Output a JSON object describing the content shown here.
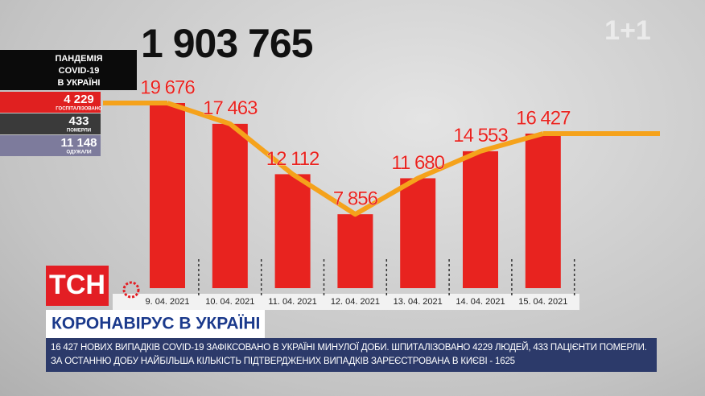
{
  "chart_data": {
    "type": "bar",
    "categories": [
      "9. 04. 2021",
      "10. 04. 2021",
      "11. 04. 2021",
      "12. 04. 2021",
      "13. 04. 2021",
      "14. 04. 2021",
      "15. 04. 2021"
    ],
    "values": [
      19676,
      17463,
      12112,
      7856,
      11680,
      14553,
      16427
    ],
    "value_labels": [
      "19 676",
      "17 463",
      "12 112",
      "7 856",
      "11 680",
      "14 553",
      "16 427"
    ],
    "color": "#e8231f",
    "line_color": "#f5a21b"
  },
  "total": "1 903 765",
  "channel": "1+1",
  "sidebar": {
    "title_lines": [
      "ПАНДЕМІЯ",
      "COVID-19",
      "В УКРАЇНІ"
    ],
    "stats": [
      {
        "value": "4 229",
        "label": "ГОСПІТАЛІЗОВАНО",
        "color": "#e02020"
      },
      {
        "value": "433",
        "label": "ПОМЕРЛИ",
        "color": "#3a3a3a"
      },
      {
        "value": "11 148",
        "label": "ОДУЖАЛИ",
        "color": "#7d7b9c"
      }
    ]
  },
  "logo": "ТСН",
  "headline": "КОРОНАВІРУС В УКРАЇНІ",
  "ticker": "16 427 НОВИХ ВИПАДКІВ COVID-19 ЗАФІКСОВАНО В УКРАЇНІ МИНУЛОЇ ДОБИ. ШПИТАЛІЗОВАНО 4229 ЛЮДЕЙ, 433 ПАЦІЄНТИ ПОМЕРЛИ. ЗА ОСТАННЮ ДОБУ НАЙБІЛЬША КІЛЬКІСТЬ ПІДТВЕРДЖЕНИХ ВИПАДКІВ ЗАРЕЄСТРОВАНА В КИЄВІ - 1625"
}
